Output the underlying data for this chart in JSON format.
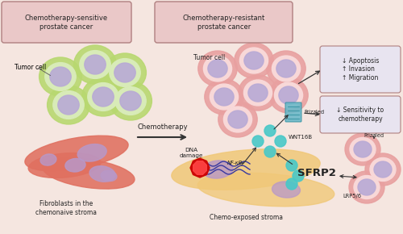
{
  "bg_color": "#f5e6e0",
  "title_box_left": "Chemotherapy-sensitive\nprostate cancer",
  "title_box_right": "Chemotherapy-resistant\nprostate cancer",
  "label_tumor_left": "Tumor cell",
  "label_fibroblast": "Fibroblasts in the\nchemonaive stroma",
  "label_tumor_right": "Tumor cell",
  "label_chemo": "Chemotherapy",
  "label_dna": "DNA\ndamage",
  "label_nfkb": "NF-κB",
  "label_wnt16b": "WNT16B",
  "label_frizzled1": "Frizzled",
  "label_frizzled2": "Frizzled",
  "label_sfrp2": "SFRP2",
  "label_lrp56": "LRP5/6",
  "label_stroma": "Chemo-exposed stroma",
  "box1_text": "↓ Apoptosis\n↑ Invasion\n↑ Migration",
  "box2_text": "↓ Sensitivity to\nchemotherapy",
  "cell_outer_green": "#b8d870",
  "cell_inner_green": "#d8ebb8",
  "cell_nucleus_purple": "#b8aad5",
  "cell_outer_pink": "#e8a0a0",
  "cell_inner_pink": "#f8d8d8",
  "fibroblast_color": "#e07060",
  "fibroblast_nucleus": "#b898c8",
  "stroma_color": "#f0c878",
  "wnt_color": "#48c8c8",
  "arrow_color": "#333333",
  "box_border_color": "#b08080",
  "title_box_fill": "#eac8c8"
}
